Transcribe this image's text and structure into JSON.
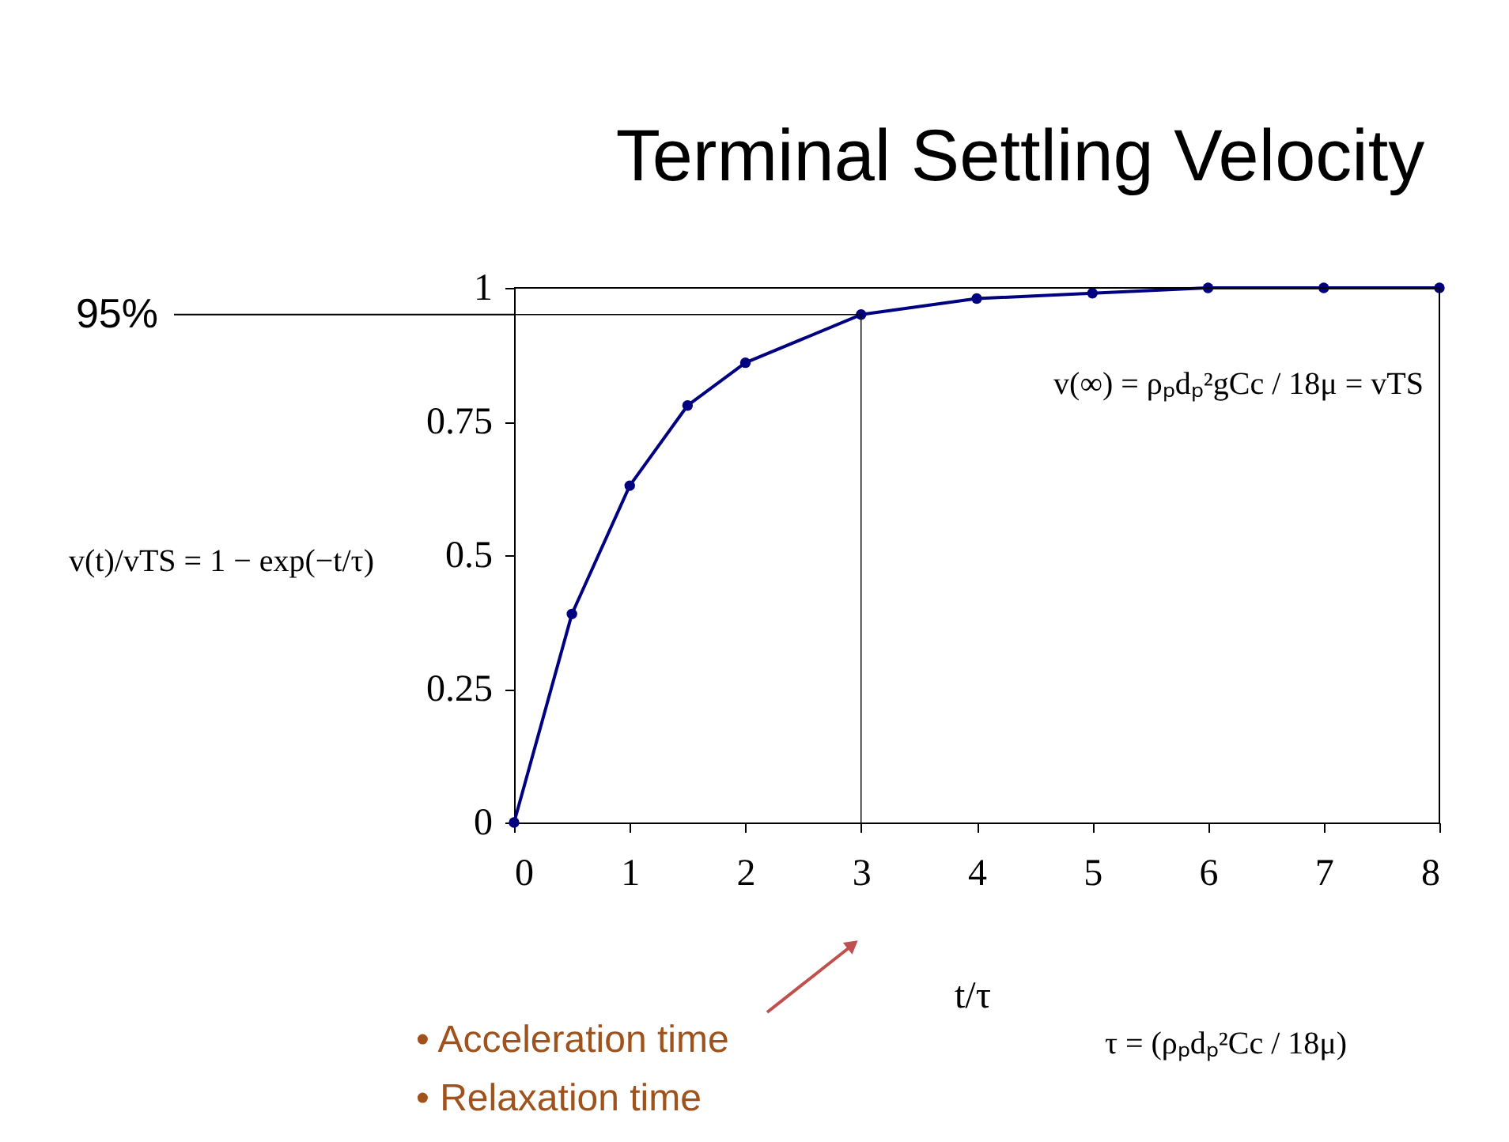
{
  "chart_data": {
    "type": "line",
    "title": "Terminal Settling Velocity",
    "xlabel": "t/τ",
    "ylabel": "v(t)/vTS = 1 − exp(−t/τ)",
    "x": [
      0,
      0.5,
      1,
      1.5,
      2,
      3,
      4,
      5,
      6,
      7,
      8
    ],
    "series": [
      {
        "color": "#000080",
        "values": [
          0,
          0.39,
          0.63,
          0.78,
          0.86,
          0.95,
          0.98,
          0.99,
          1,
          1,
          1
        ]
      }
    ],
    "xlim": [
      0,
      8
    ],
    "xticks": [
      0,
      1,
      2,
      3,
      4,
      5,
      6,
      7,
      8
    ],
    "ylim": [
      0,
      1
    ],
    "yticks": [
      0,
      0.25,
      0.5,
      0.75,
      1
    ],
    "marker": "circle",
    "line_style": "solid",
    "grid": false,
    "ref_lines": [
      {
        "axis": "y",
        "value": 0.95,
        "label": "95%",
        "color": "#000000"
      },
      {
        "axis": "x",
        "value": 3,
        "color": "#000000"
      }
    ],
    "annotations": [
      "• Acceleration time",
      "• Relaxation time",
      "v(∞) = ρₚdₚ²gCc / 18μ = vTS",
      "τ = (ρₚdₚ²Cc / 18μ)"
    ]
  }
}
